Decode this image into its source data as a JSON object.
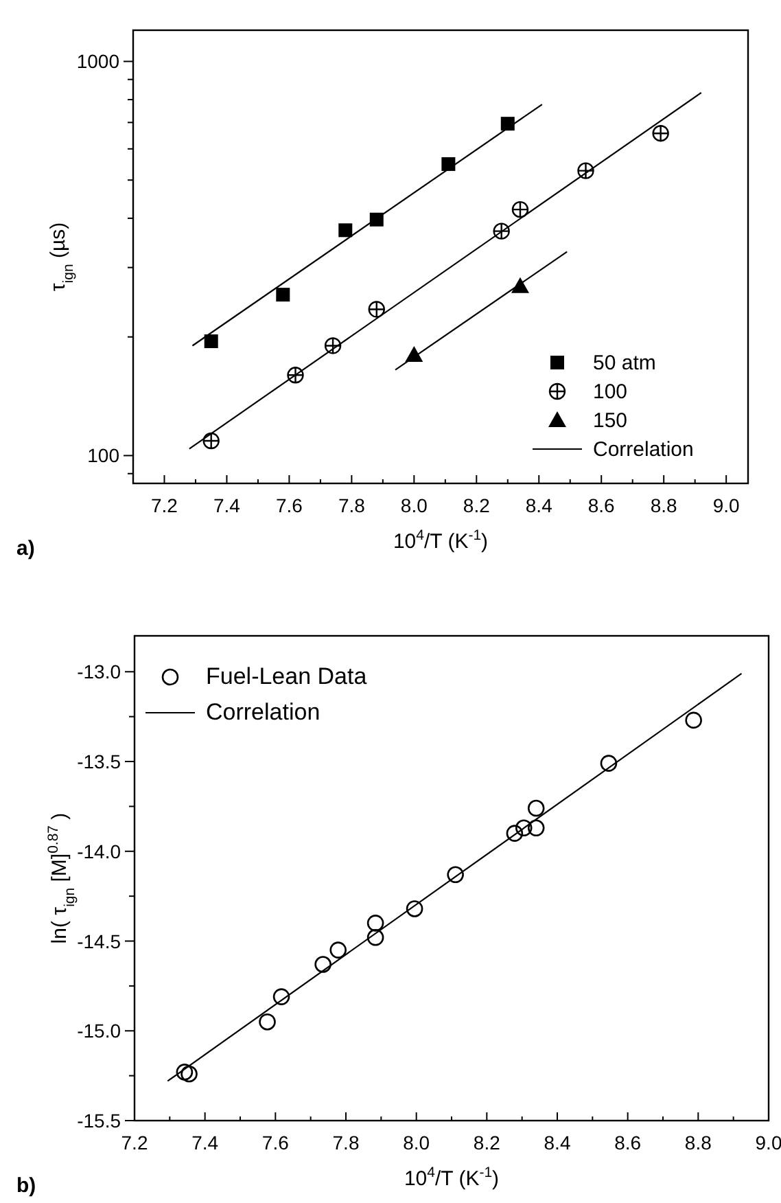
{
  "chart_data": [
    {
      "type": "scatter",
      "xlabel": "10$^{4}$/T (K$^{-1}$)",
      "ylabel": "τ$_{ign}$ (µs)",
      "annotations": [
        "a)"
      ],
      "log": "y",
      "legend": "bottom right",
      "xlim": [
        7.1,
        9.07
      ],
      "ylim": [
        85,
        1200
      ],
      "xticks": [
        7.2,
        {
          "value": 7.3,
          "label": null
        },
        7.4,
        {
          "value": 7.5,
          "label": null
        },
        7.6,
        {
          "value": 7.7,
          "label": null
        },
        7.8,
        {
          "value": 7.9,
          "label": null
        },
        {
          "value": 8,
          "label": "8.0"
        },
        {
          "value": 8.1,
          "label": null
        },
        8.2,
        {
          "value": 8.3,
          "label": null
        },
        8.4,
        {
          "value": 8.5,
          "label": null
        },
        8.6,
        {
          "value": 8.7,
          "label": null
        },
        8.8,
        {
          "value": 8.9,
          "label": null
        },
        {
          "value": 9,
          "label": "9.0"
        }
      ],
      "yticks": [
        {
          "value": 90,
          "label": null
        },
        100,
        {
          "value": 200,
          "label": null
        },
        {
          "value": 300,
          "label": null
        },
        {
          "value": 400,
          "label": null
        },
        {
          "value": 500,
          "label": null
        },
        {
          "value": 600,
          "label": null
        },
        {
          "value": 700,
          "label": null
        },
        {
          "value": 800,
          "label": null
        },
        {
          "value": 900,
          "label": null
        },
        1000
      ],
      "series": [
        {
          "name": "50 atm",
          "marker": "square",
          "color": "#000000",
          "x": [
            7.35,
            7.58,
            7.78,
            7.88,
            8.11,
            8.3
          ],
          "values": [
            195,
            256,
            373,
            397,
            549,
            695
          ]
        },
        {
          "name": "100",
          "marker": "cross",
          "color": "#000000",
          "x": [
            7.35,
            7.62,
            7.74,
            7.88,
            8.28,
            8.34,
            8.55,
            8.79
          ],
          "values": [
            109,
            160,
            190,
            235,
            371,
            421,
            528,
            657
          ]
        },
        {
          "name": "150",
          "marker": "triangle",
          "color": "#000000",
          "x": [
            8.0,
            8.34
          ],
          "values": [
            180,
            269
          ]
        },
        {
          "name": "Correlation",
          "type": "line",
          "color": "#000000",
          "x": [
            7.29,
            8.41
          ],
          "values": [
            190,
            778
          ]
        },
        {
          "type": "line",
          "color": "#000000",
          "x": [
            7.28,
            8.92
          ],
          "values": [
            104,
            833
          ]
        },
        {
          "type": "line",
          "color": "#000000",
          "x": [
            7.94,
            8.49
          ],
          "values": [
            165,
            329
          ]
        }
      ]
    },
    {
      "type": "scatter",
      "xlabel": "10$^{4}$/T (K$^{-1}$)",
      "ylabel": "ln( τ$_{ign}$ [M]$^{0.87}$ )",
      "annotations": [
        "b)"
      ],
      "legend": "top left",
      "xlim": [
        7.2,
        9.0
      ],
      "ylim": [
        -15.5,
        -12.8
      ],
      "xticks": [
        7.2,
        {
          "value": 7.3,
          "label": null
        },
        7.4,
        {
          "value": 7.5,
          "label": null
        },
        7.6,
        {
          "value": 7.7,
          "label": null
        },
        7.8,
        {
          "value": 7.9,
          "label": null
        },
        {
          "value": 8,
          "label": "8.0"
        },
        {
          "value": 8.1,
          "label": null
        },
        8.2,
        {
          "value": 8.3,
          "label": null
        },
        8.4,
        {
          "value": 8.5,
          "label": null
        },
        8.6,
        {
          "value": 8.7,
          "label": null
        },
        8.8,
        {
          "value": 8.9,
          "label": null
        },
        {
          "value": 9,
          "label": "9.0"
        }
      ],
      "yticks": [
        {
          "value": -15.5,
          "label": "-15.5"
        },
        {
          "value": -15.25,
          "label": null
        },
        {
          "value": -15.0,
          "label": "-15.0"
        },
        {
          "value": -14.75,
          "label": null
        },
        {
          "value": -14.5,
          "label": "-14.5"
        },
        {
          "value": -14.25,
          "label": null
        },
        {
          "value": -14.0,
          "label": "-14.0"
        },
        {
          "value": -13.75,
          "label": null
        },
        {
          "value": -13.5,
          "label": "-13.5"
        },
        {
          "value": -13.25,
          "label": null
        },
        {
          "value": -13.0,
          "label": "-13.0"
        }
      ],
      "series": [
        {
          "name": "Fuel-Lean Data",
          "marker": "circle",
          "color": "#000000",
          "x": [
            7.342,
            7.355,
            7.577,
            7.617,
            7.735,
            7.778,
            7.884,
            7.884,
            7.995,
            8.111,
            8.279,
            8.305,
            8.34,
            8.34,
            8.546,
            8.787
          ],
          "values": [
            -15.23,
            -15.24,
            -14.95,
            -14.81,
            -14.63,
            -14.55,
            -14.4,
            -14.48,
            -14.32,
            -14.13,
            -13.9,
            -13.87,
            -13.76,
            -13.87,
            -13.51,
            -13.27
          ]
        },
        {
          "name": "Correlation",
          "type": "line",
          "color": "#000000",
          "x": [
            7.294,
            8.923
          ],
          "values": [
            -15.28,
            -13.01
          ]
        }
      ]
    }
  ]
}
